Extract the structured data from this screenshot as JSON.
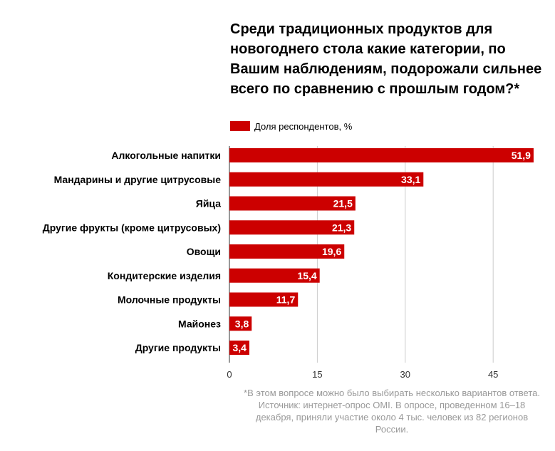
{
  "chart_data": {
    "type": "bar",
    "orientation": "horizontal",
    "title": "Среди традиционных продуктов для новогоднего стола какие категории, по Вашим наблюдениям, подорожали сильнее всего по сравнению с прошлым годом?*",
    "categories": [
      "Алкогольные напитки",
      "Мандарины и другие цитрусовые",
      "Яйца",
      "Другие фрукты (кроме цитрусовых)",
      "Овощи",
      "Кондитерские изделия",
      "Молочные продукты",
      "Майонез",
      "Другие продукты"
    ],
    "series": [
      {
        "name": "Доля респондентов, %",
        "values": [
          51.9,
          33.1,
          21.5,
          21.3,
          19.6,
          15.4,
          11.7,
          3.8,
          3.4
        ],
        "labels": [
          "51,9",
          "33,1",
          "21,5",
          "21,3",
          "19,6",
          "15,4",
          "11,7",
          "3,8",
          "3,4"
        ],
        "color": "#cc0000"
      }
    ],
    "xlim": [
      0,
      53
    ],
    "xticks": [
      0,
      15,
      30,
      45
    ],
    "xtick_labels": [
      "0",
      "15",
      "30",
      "45"
    ],
    "grid": true,
    "legend_position": "top-left",
    "footnote": "*В этом вопросе можно было выбирать несколько вариантов ответа. Источник: интернет-опрос OMI. В опросе, проведенном 16–18 декабря, приняли участие около 4 тыс. человек из 82 регионов России."
  },
  "colors": {
    "bar": "#cc0000",
    "grid": "#cccccc",
    "footnote": "#999999"
  }
}
